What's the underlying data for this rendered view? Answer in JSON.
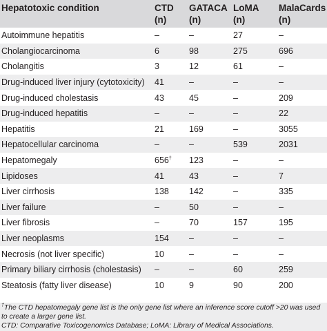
{
  "table": {
    "headers": [
      {
        "title": "Hepatotoxic condition",
        "unit": ""
      },
      {
        "title": "CTD",
        "unit": "(n)"
      },
      {
        "title": "GATACA",
        "unit": "(n)"
      },
      {
        "title": "LoMA",
        "unit": "(n)"
      },
      {
        "title": "MalaCards",
        "unit": "(n)"
      }
    ],
    "rows": [
      {
        "condition": "Autoimmune hepatitis",
        "ctd": "–",
        "ctd_mark": "",
        "gataca": "–",
        "loma": "27",
        "malacards": "–"
      },
      {
        "condition": "Cholangiocarcinoma",
        "ctd": "6",
        "ctd_mark": "",
        "gataca": "98",
        "loma": "275",
        "malacards": "696"
      },
      {
        "condition": "Cholangitis",
        "ctd": "3",
        "ctd_mark": "",
        "gataca": "12",
        "loma": "61",
        "malacards": "–"
      },
      {
        "condition": "Drug-induced liver injury (cytotoxicity)",
        "ctd": "41",
        "ctd_mark": "",
        "gataca": "–",
        "loma": "–",
        "malacards": "–"
      },
      {
        "condition": "Drug-induced cholestasis",
        "ctd": "43",
        "ctd_mark": "",
        "gataca": "45",
        "loma": "–",
        "malacards": "209"
      },
      {
        "condition": "Drug-induced hepatitis",
        "ctd": "–",
        "ctd_mark": "",
        "gataca": "–",
        "loma": "–",
        "malacards": "22"
      },
      {
        "condition": "Hepatitis",
        "ctd": "21",
        "ctd_mark": "",
        "gataca": "169",
        "loma": "–",
        "malacards": "3055"
      },
      {
        "condition": "Hepatocellular carcinoma",
        "ctd": "–",
        "ctd_mark": "",
        "gataca": "–",
        "loma": "539",
        "malacards": "2031"
      },
      {
        "condition": "Hepatomegaly",
        "ctd": "656",
        "ctd_mark": "†",
        "gataca": "123",
        "loma": "–",
        "malacards": "–"
      },
      {
        "condition": "Lipidoses",
        "ctd": "41",
        "ctd_mark": "",
        "gataca": "43",
        "loma": "–",
        "malacards": "7"
      },
      {
        "condition": "Liver cirrhosis",
        "ctd": "138",
        "ctd_mark": "",
        "gataca": "142",
        "loma": "–",
        "malacards": "335"
      },
      {
        "condition": "Liver failure",
        "ctd": "–",
        "ctd_mark": "",
        "gataca": "50",
        "loma": "–",
        "malacards": "–"
      },
      {
        "condition": "Liver fibrosis",
        "ctd": "–",
        "ctd_mark": "",
        "gataca": "70",
        "loma": "157",
        "malacards": "195"
      },
      {
        "condition": "Liver neoplasms",
        "ctd": "154",
        "ctd_mark": "",
        "gataca": "–",
        "loma": "–",
        "malacards": "–"
      },
      {
        "condition": "Necrosis (not liver specific)",
        "ctd": "10",
        "ctd_mark": "",
        "gataca": "–",
        "loma": "–",
        "malacards": "–"
      },
      {
        "condition": "Primary biliary cirrhosis (cholestasis)",
        "ctd": "–",
        "ctd_mark": "",
        "gataca": "–",
        "loma": "60",
        "malacards": "259"
      },
      {
        "condition": "Steatosis (fatty liver disease)",
        "ctd": "10",
        "ctd_mark": "",
        "gataca": "9",
        "loma": "90",
        "malacards": "200"
      }
    ]
  },
  "footnotes": {
    "dagger_symbol": "†",
    "dagger_text": "The CTD hepatomegaly gene list is the only gene list where an inference score cutoff >20 was used to create a larger gene list.",
    "abbreviations": "CTD: Comparative Toxicogenomics Database; LoMA: Library of Medical Associations."
  }
}
